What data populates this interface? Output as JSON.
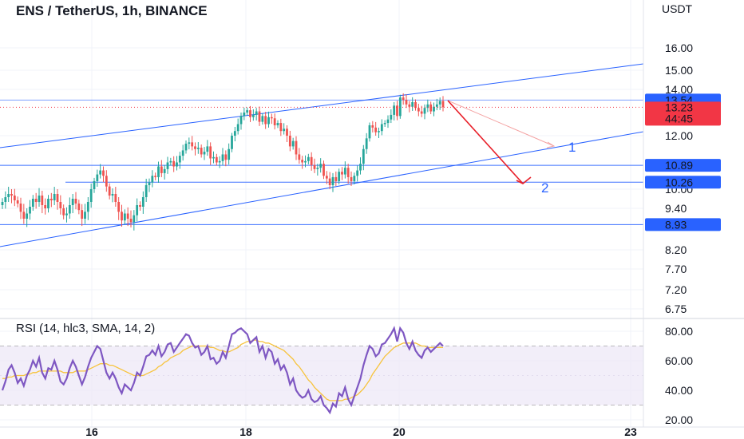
{
  "chart_title": "ENS / TetherUS, 1h, BINANCE",
  "currency": "USDT",
  "colors": {
    "up": "#26a69a",
    "down": "#ef5350",
    "line": "#2962ff",
    "rsi": "#7e57c2",
    "rsi_ma": "#f7c33b",
    "rsi_band": "#ede7f6",
    "tag_blue": "#2962ff",
    "tag_red": "#f23645",
    "arrow_red": "#e8202a",
    "arrow_pink": "#f4a3a3"
  },
  "chart_data": [
    {
      "type": "candlestick",
      "title": "ENS / TetherUS, 1h, BINANCE",
      "ylabel": "USDT",
      "y_tick_labels": [
        "16.00",
        "15.00",
        "14.00",
        "12.00",
        "10.00",
        "9.40",
        "8.20",
        "7.70",
        "7.20",
        "6.75"
      ],
      "y_ticks": [
        16.0,
        15.0,
        14.0,
        12.0,
        10.0,
        9.4,
        8.2,
        7.7,
        7.2,
        6.75
      ],
      "x_tick_labels": [
        "16",
        "18",
        "20",
        "23"
      ],
      "horizontal_levels": [
        {
          "value": 13.54,
          "label": "13.54"
        },
        {
          "value": 10.89,
          "label": "10.89"
        },
        {
          "value": 10.26,
          "label": "10.26"
        },
        {
          "value": 8.93,
          "label": "8.93"
        }
      ],
      "last_price": {
        "value": 13.23,
        "label": "13.23",
        "countdown": "44:45"
      },
      "annotations": [
        {
          "label": "1",
          "target": 11.7
        },
        {
          "label": "2",
          "target": 10.25
        }
      ],
      "close_series": [
        9.6,
        9.75,
        9.85,
        9.8,
        9.65,
        9.55,
        9.3,
        9.1,
        9.25,
        9.45,
        9.7,
        9.6,
        9.8,
        9.5,
        9.4,
        9.7,
        9.65,
        9.85,
        9.6,
        9.4,
        9.2,
        9.25,
        9.5,
        9.7,
        9.55,
        9.35,
        9.1,
        9.3,
        9.6,
        10.0,
        10.3,
        10.55,
        10.7,
        10.5,
        10.1,
        9.8,
        9.85,
        9.6,
        9.3,
        9.05,
        9.25,
        9.1,
        9.0,
        9.2,
        9.5,
        9.45,
        9.75,
        10.15,
        10.25,
        10.5,
        10.45,
        10.85,
        10.6,
        10.75,
        11.0,
        11.05,
        10.85,
        11.0,
        11.25,
        11.45,
        11.7,
        11.75,
        11.6,
        11.5,
        11.55,
        11.3,
        11.4,
        11.6,
        11.15,
        11.2,
        11.0,
        11.05,
        11.3,
        11.1,
        11.5,
        12.0,
        12.2,
        12.5,
        12.85,
        13.0,
        13.1,
        12.8,
        12.9,
        13.05,
        12.6,
        12.85,
        12.5,
        12.8,
        12.75,
        12.45,
        12.55,
        12.2,
        12.3,
        12.0,
        11.6,
        11.8,
        11.3,
        11.1,
        11.0,
        11.05,
        11.2,
        10.9,
        10.75,
        10.8,
        10.95,
        10.5,
        10.4,
        10.15,
        10.45,
        10.3,
        10.65,
        10.55,
        10.8,
        10.45,
        10.3,
        10.5,
        10.7,
        10.95,
        11.5,
        11.9,
        12.45,
        12.35,
        12.15,
        12.2,
        12.5,
        12.55,
        12.7,
        12.9,
        13.3,
        12.85,
        13.65,
        13.55,
        13.35,
        13.25,
        13.45,
        13.2,
        13.05,
        12.95,
        13.2,
        13.35,
        13.05,
        13.25,
        13.35,
        13.5,
        13.23
      ]
    },
    {
      "type": "line",
      "title": "RSI (14, hlc3, SMA, 14, 2)",
      "y_tick_labels": [
        "80.00",
        "60.00",
        "40.00",
        "20.00"
      ],
      "y_ticks": [
        80,
        60,
        40,
        20
      ],
      "band": [
        30,
        70
      ],
      "series": [
        {
          "values": [
            40,
            46,
            54,
            57,
            52,
            45,
            48,
            43,
            50,
            54,
            60,
            56,
            62,
            52,
            48,
            55,
            54,
            60,
            54,
            46,
            44,
            48,
            55,
            60,
            56,
            50,
            44,
            49,
            56,
            62,
            66,
            70,
            68,
            60,
            52,
            48,
            52,
            48,
            42,
            38,
            44,
            42,
            40,
            45,
            52,
            50,
            56,
            63,
            64,
            67,
            64,
            70,
            63,
            66,
            71,
            72,
            66,
            69,
            72,
            75,
            78,
            77,
            72,
            69,
            70,
            64,
            66,
            70,
            61,
            62,
            58,
            60,
            66,
            62,
            70,
            78,
            79,
            81,
            82,
            80,
            78,
            72,
            74,
            76,
            66,
            70,
            62,
            68,
            66,
            58,
            61,
            54,
            57,
            52,
            44,
            48,
            40,
            37,
            35,
            36,
            40,
            34,
            32,
            33,
            36,
            30,
            28,
            25,
            31,
            29,
            38,
            36,
            42,
            34,
            30,
            36,
            42,
            48,
            57,
            64,
            70,
            68,
            63,
            65,
            71,
            72,
            75,
            78,
            82,
            73,
            82,
            79,
            72,
            68,
            73,
            67,
            64,
            62,
            67,
            69,
            66,
            68,
            70,
            72,
            70
          ]
        },
        {
          "values": [
            48,
            48,
            49,
            49,
            50,
            50,
            50,
            50,
            51,
            51,
            52,
            52,
            53,
            53,
            53,
            53,
            53,
            53,
            53,
            53,
            52,
            52,
            52,
            52,
            53,
            53,
            53,
            53,
            54,
            55,
            56,
            57,
            58,
            58,
            58,
            57,
            57,
            56,
            55,
            54,
            53,
            52,
            51,
            50,
            50,
            50,
            50,
            51,
            52,
            53,
            54,
            56,
            57,
            59,
            60,
            62,
            63,
            64,
            65,
            67,
            68,
            69,
            70,
            70,
            70,
            70,
            70,
            70,
            69,
            69,
            68,
            67,
            67,
            66,
            66,
            67,
            68,
            69,
            71,
            72,
            73,
            73,
            74,
            74,
            73,
            73,
            72,
            72,
            71,
            70,
            69,
            68,
            67,
            65,
            63,
            61,
            58,
            56,
            53,
            50,
            47,
            45,
            42,
            40,
            38,
            36,
            34,
            33,
            33,
            33,
            33,
            33,
            34,
            34,
            35,
            36,
            37,
            39,
            41,
            44,
            47,
            51,
            54,
            57,
            60,
            63,
            65,
            67,
            69,
            70,
            71,
            72,
            72,
            72,
            72,
            72,
            71,
            70,
            70,
            69,
            69,
            69,
            69,
            69,
            69
          ]
        }
      ]
    }
  ]
}
